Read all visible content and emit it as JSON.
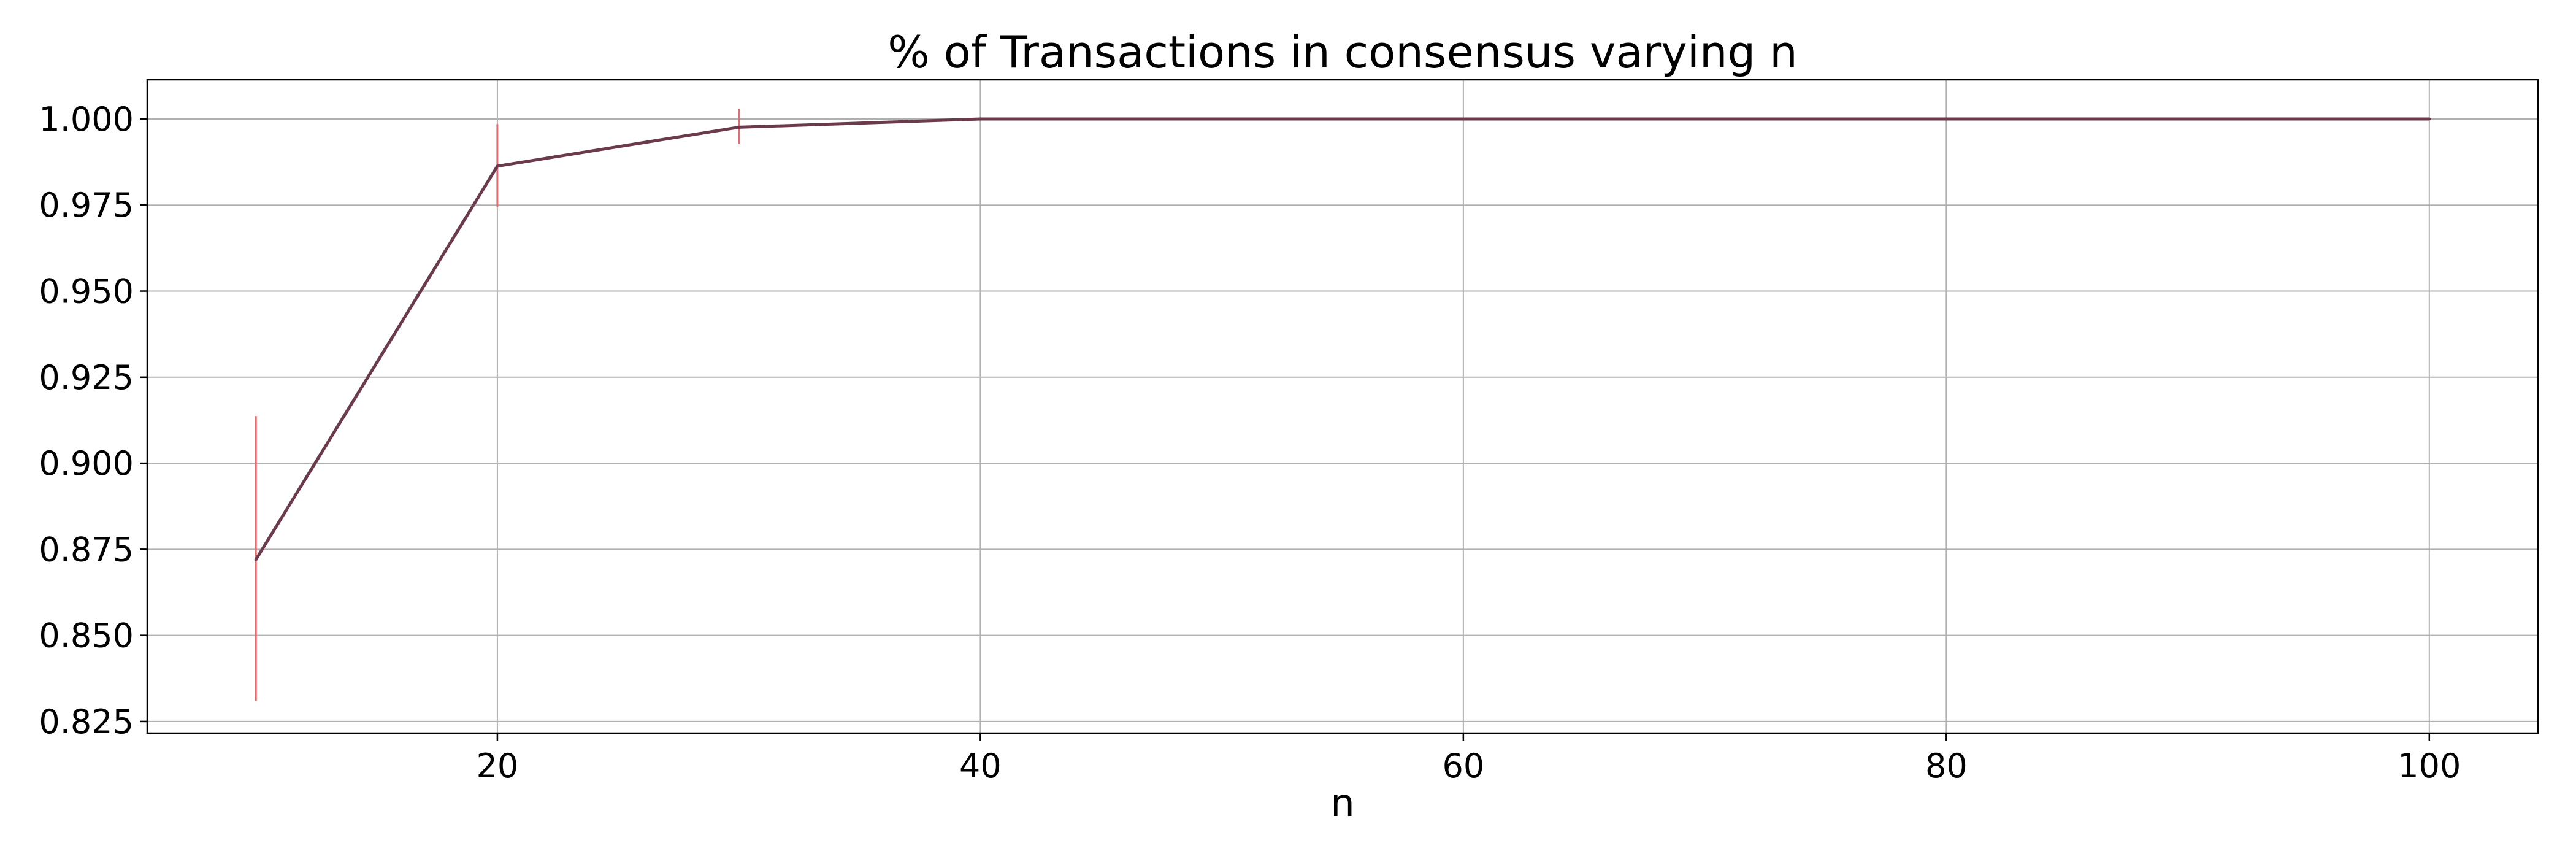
{
  "chart_data": {
    "type": "line",
    "title": "% of Transactions in consensus varying n",
    "xlabel": "n",
    "ylabel": "",
    "xlim": [
      5.5,
      104.5
    ],
    "ylim": [
      0.8216,
      1.0114
    ],
    "xticks": [
      20,
      40,
      60,
      80,
      100
    ],
    "yticks": [
      0.825,
      0.85,
      0.875,
      0.9,
      0.925,
      0.95,
      0.975,
      1.0
    ],
    "ytick_labels": [
      "0.825",
      "0.850",
      "0.875",
      "0.900",
      "0.925",
      "0.950",
      "0.975",
      "1.000"
    ],
    "grid": true,
    "legend": "none",
    "series": [
      {
        "x": [
          10,
          20,
          30,
          40,
          50,
          60,
          70,
          80,
          90,
          100
        ],
        "y": [
          0.872,
          0.9863,
          0.9976,
          1.0,
          1.0,
          1.0,
          1.0,
          1.0,
          1.0,
          1.0
        ],
        "error_low": [
          0.831,
          0.9745,
          0.9927,
          1.0,
          1.0,
          1.0,
          1.0,
          1.0,
          1.0,
          1.0
        ],
        "error_high": [
          0.9137,
          0.9985,
          1.003,
          1.0,
          1.0,
          1.0,
          1.0,
          1.0,
          1.0,
          1.0
        ]
      }
    ],
    "colors": {
      "line": "#6b3a4d",
      "error_bar": "#e8696b",
      "grid": "#b0b0b0",
      "axes": "#000000"
    }
  }
}
